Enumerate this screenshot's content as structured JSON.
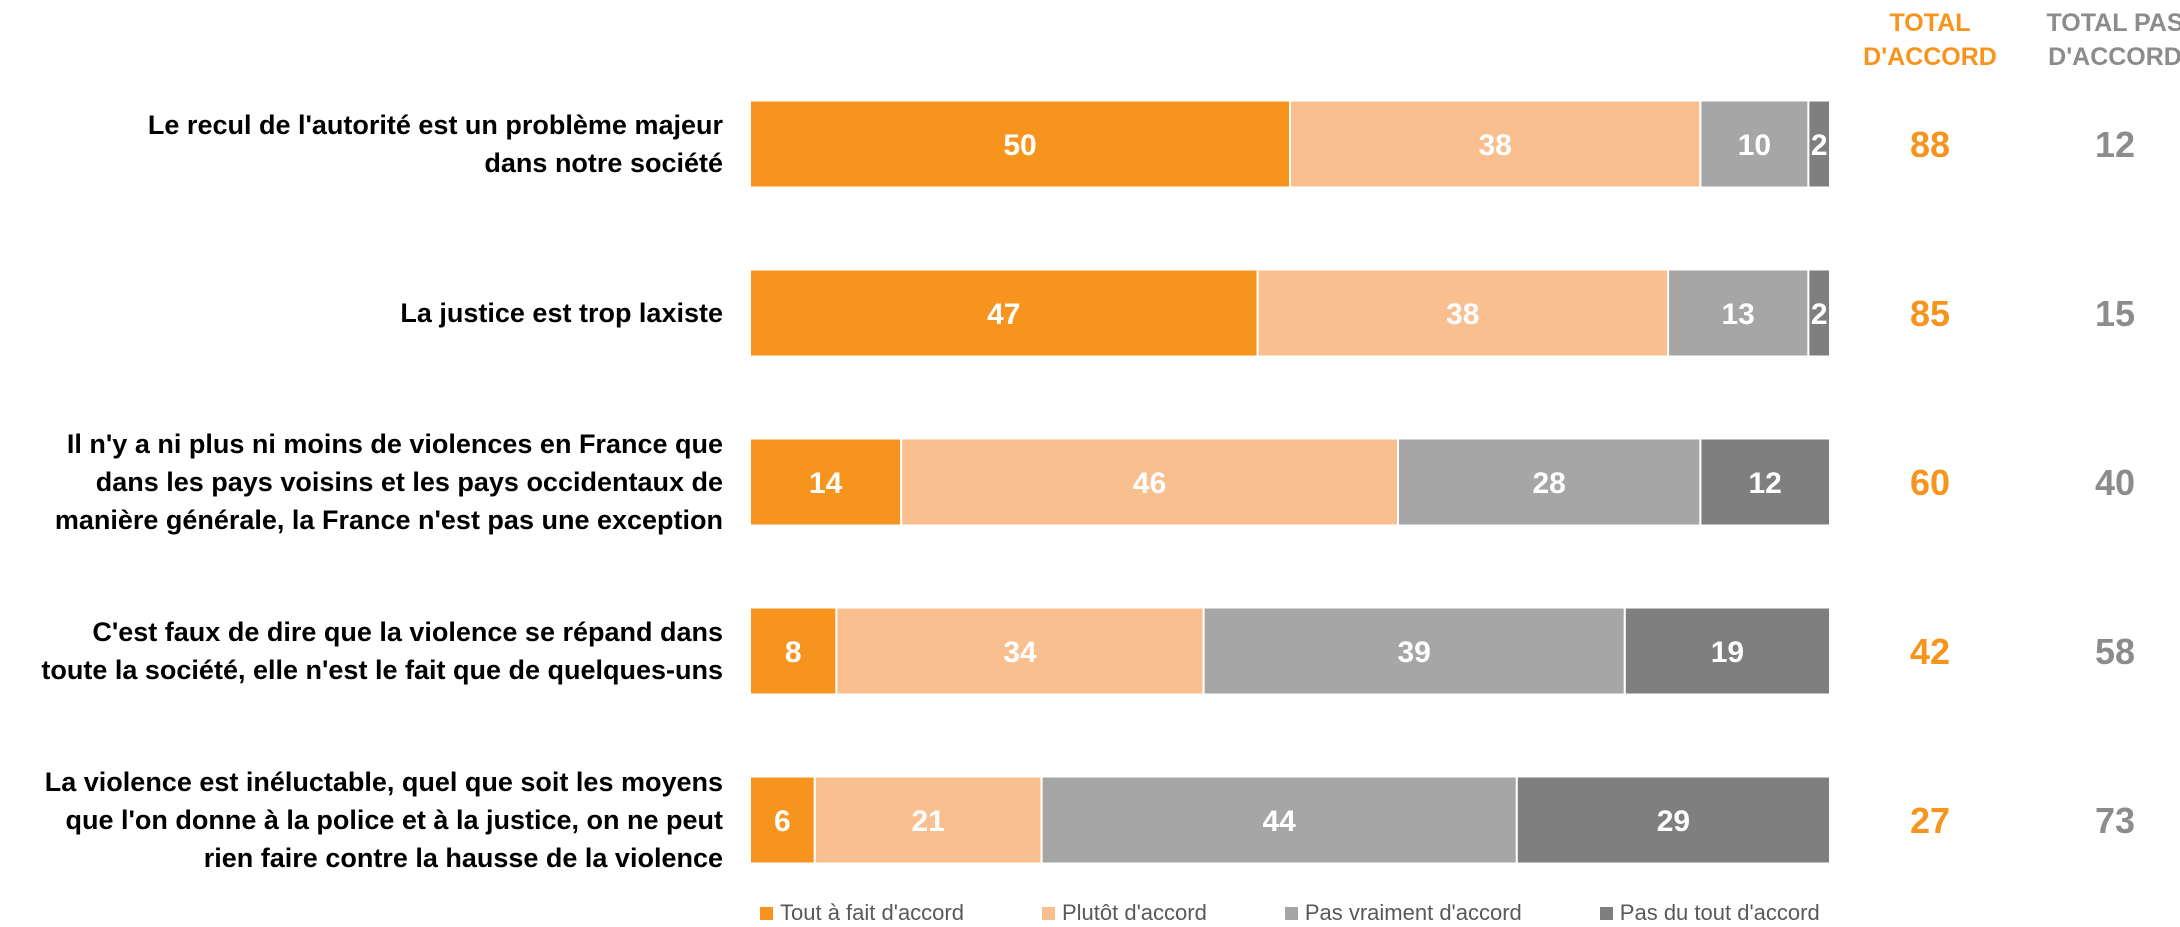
{
  "headers": {
    "total_agree": [
      "TOTAL",
      "D'ACCORD"
    ],
    "total_disagree": [
      "TOTAL PAS",
      "D'ACCORD"
    ]
  },
  "colors": {
    "tout_a_fait": "#f7941d",
    "plutot": "#f9bf8f",
    "pas_vraiment": "#a6a6a6",
    "pas_du_tout": "#7f7f7f",
    "total_agree_text": "#f7941d",
    "total_disagree_text": "#8c8c8c"
  },
  "chart_data": {
    "type": "bar",
    "orientation": "horizontal",
    "stacked": true,
    "categories": [
      [
        "Le recul de l'autorité est un problème majeur",
        "dans notre société"
      ],
      [
        "La justice est trop laxiste"
      ],
      [
        "Il n'y a ni plus ni moins de violences en France que",
        "dans les pays voisins et les pays occidentaux de",
        "manière générale, la France n'est pas une exception"
      ],
      [
        "C'est faux de dire que la violence se répand dans",
        "toute la société, elle n'est le fait que de quelques-uns"
      ],
      [
        "La violence est inéluctable, quel que soit les moyens",
        "que l'on donne à la police et à la justice, on ne peut",
        "rien faire contre la hausse de la violence"
      ]
    ],
    "series": [
      {
        "name": "Tout à fait d'accord",
        "values": [
          50,
          47,
          14,
          8,
          6
        ]
      },
      {
        "name": "Plutôt d'accord",
        "values": [
          38,
          38,
          46,
          34,
          21
        ]
      },
      {
        "name": "Pas vraiment d'accord",
        "values": [
          10,
          13,
          28,
          39,
          44
        ]
      },
      {
        "name": "Pas du tout d'accord",
        "values": [
          2,
          2,
          12,
          19,
          29
        ]
      }
    ],
    "total_agree": [
      88,
      85,
      60,
      42,
      27
    ],
    "total_disagree": [
      12,
      15,
      40,
      58,
      73
    ],
    "xlim": [
      0,
      100
    ],
    "legend_position": "bottom"
  }
}
